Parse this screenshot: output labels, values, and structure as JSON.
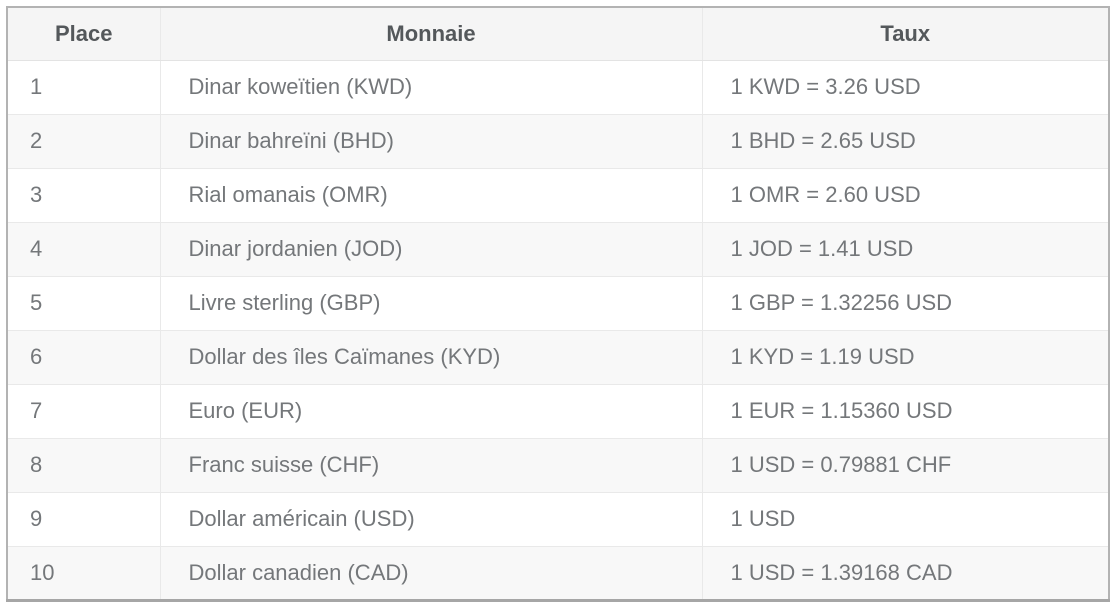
{
  "table": {
    "headers": [
      "Place",
      "Monnaie",
      "Taux"
    ],
    "rows": [
      {
        "place": "1",
        "monnaie": "Dinar koweïtien (KWD)",
        "taux": "1 KWD = 3.26 USD"
      },
      {
        "place": "2",
        "monnaie": "Dinar bahreïni (BHD)",
        "taux": "1 BHD = 2.65 USD"
      },
      {
        "place": "3",
        "monnaie": "Rial omanais (OMR)",
        "taux": "1 OMR = 2.60 USD"
      },
      {
        "place": "4",
        "monnaie": "Dinar jordanien (JOD)",
        "taux": "1 JOD = 1.41 USD"
      },
      {
        "place": "5",
        "monnaie": "Livre sterling (GBP)",
        "taux": "1 GBP = 1.32256 USD"
      },
      {
        "place": "6",
        "monnaie": "Dollar des îles Caïmanes (KYD)",
        "taux": "1 KYD = 1.19 USD"
      },
      {
        "place": "7",
        "monnaie": "Euro (EUR)",
        "taux": "1 EUR = 1.15360 USD"
      },
      {
        "place": "8",
        "monnaie": "Franc suisse (CHF)",
        "taux": "1 USD = 0.79881 CHF"
      },
      {
        "place": "9",
        "monnaie": "Dollar américain (USD)",
        "taux": "1 USD"
      },
      {
        "place": "10",
        "monnaie": "Dollar canadien (CAD)",
        "taux": "1 USD = 1.39168 CAD"
      }
    ]
  },
  "colors": {
    "header_bg": "#f5f5f5",
    "row_alt_bg": "#f8f8f8",
    "grid_line": "#e9e9e9",
    "outer_border": "#b3b3b3",
    "header_text": "#54585b",
    "body_text": "#74777a"
  },
  "chart_data": {
    "type": "table",
    "columns": [
      "Place",
      "Monnaie",
      "Taux"
    ],
    "rows": [
      [
        "1",
        "Dinar koweïtien (KWD)",
        "1 KWD = 3.26 USD"
      ],
      [
        "2",
        "Dinar bahreïni (BHD)",
        "1 BHD = 2.65 USD"
      ],
      [
        "3",
        "Rial omanais (OMR)",
        "1 OMR = 2.60 USD"
      ],
      [
        "4",
        "Dinar jordanien (JOD)",
        "1 JOD = 1.41 USD"
      ],
      [
        "5",
        "Livre sterling (GBP)",
        "1 GBP = 1.32256 USD"
      ],
      [
        "6",
        "Dollar des îles Caïmanes (KYD)",
        "1 KYD = 1.19 USD"
      ],
      [
        "7",
        "Euro (EUR)",
        "1 EUR = 1.15360 USD"
      ],
      [
        "8",
        "Franc suisse (CHF)",
        "1 USD = 0.79881 CHF"
      ],
      [
        "9",
        "Dollar américain (USD)",
        "1 USD"
      ],
      [
        "10",
        "Dollar canadien (CAD)",
        "1 USD = 1.39168 CAD"
      ]
    ]
  }
}
